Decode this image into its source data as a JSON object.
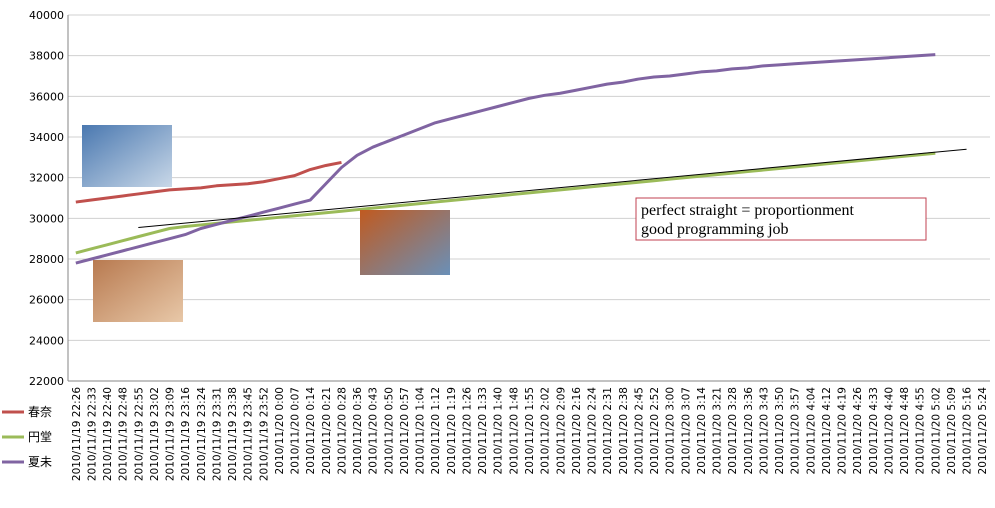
{
  "chart_data": {
    "type": "line",
    "categories": [
      "2010/11/19 22:26",
      "2010/11/19 22:33",
      "2010/11/19 22:40",
      "2010/11/19 22:48",
      "2010/11/19 22:55",
      "2010/11/19 23:02",
      "2010/11/19 23:09",
      "2010/11/19 23:16",
      "2010/11/19 23:24",
      "2010/11/19 23:31",
      "2010/11/19 23:38",
      "2010/11/19 23:45",
      "2010/11/19 23:52",
      "2010/11/20 0:00",
      "2010/11/20 0:07",
      "2010/11/20 0:14",
      "2010/11/20 0:21",
      "2010/11/20 0:28",
      "2010/11/20 0:36",
      "2010/11/20 0:43",
      "2010/11/20 0:50",
      "2010/11/20 0:57",
      "2010/11/20 1:04",
      "2010/11/20 1:12",
      "2010/11/20 1:19",
      "2010/11/20 1:26",
      "2010/11/20 1:33",
      "2010/11/20 1:40",
      "2010/11/20 1:48",
      "2010/11/20 1:55",
      "2010/11/20 2:02",
      "2010/11/20 2:09",
      "2010/11/20 2:16",
      "2010/11/20 2:24",
      "2010/11/20 2:31",
      "2010/11/20 2:38",
      "2010/11/20 2:45",
      "2010/11/20 2:52",
      "2010/11/20 3:00",
      "2010/11/20 3:07",
      "2010/11/20 3:14",
      "2010/11/20 3:21",
      "2010/11/20 3:28",
      "2010/11/20 3:36",
      "2010/11/20 3:43",
      "2010/11/20 3:50",
      "2010/11/20 3:57",
      "2010/11/20 4:04",
      "2010/11/20 4:12",
      "2010/11/20 4:19",
      "2010/11/20 4:26",
      "2010/11/20 4:33",
      "2010/11/20 4:40",
      "2010/11/20 4:48",
      "2010/11/20 4:55",
      "2010/11/20 5:02",
      "2010/11/20 5:09",
      "2010/11/20 5:16",
      "2010/11/20 5:24"
    ],
    "series": [
      {
        "name": "春奈",
        "color": "#c0504d",
        "values": [
          30800,
          30900,
          31000,
          31100,
          31200,
          31300,
          31400,
          31450,
          31500,
          31600,
          31650,
          31700,
          31800,
          31950,
          32100,
          32400,
          32600,
          32750,
          null,
          null,
          null,
          null,
          null,
          null,
          null,
          null,
          null,
          null,
          null,
          null,
          null,
          null,
          null,
          null,
          null,
          null,
          null,
          null,
          null,
          null,
          null,
          null,
          null,
          null,
          null,
          null,
          null,
          null,
          null,
          null,
          null,
          null,
          null,
          null,
          null,
          null,
          null,
          null,
          null
        ]
      },
      {
        "name": "円堂",
        "color": "#9bbb59",
        "values": [
          28300,
          28500,
          28700,
          28900,
          29100,
          29300,
          29500,
          29600,
          29675,
          29750,
          29825,
          29900,
          29975,
          30050,
          30125,
          30200,
          30275,
          30350,
          30425,
          30500,
          30575,
          30650,
          30725,
          30800,
          30875,
          30950,
          31025,
          31100,
          31175,
          31250,
          31325,
          31400,
          31475,
          31550,
          31625,
          31700,
          31775,
          31850,
          31925,
          32000,
          32075,
          32150,
          32225,
          32300,
          32375,
          32450,
          32525,
          32600,
          32675,
          32750,
          32825,
          32900,
          32975,
          33050,
          33125,
          33200,
          null,
          null,
          null
        ]
      },
      {
        "name": "夏未",
        "color": "#8064a2",
        "values": [
          27800,
          28000,
          28200,
          28400,
          28600,
          28800,
          29000,
          29200,
          29500,
          29700,
          29900,
          30100,
          30300,
          30500,
          30700,
          30900,
          31700,
          32500,
          33100,
          33500,
          33800,
          34100,
          34400,
          34700,
          34900,
          35100,
          35300,
          35500,
          35700,
          35900,
          36050,
          36150,
          36300,
          36450,
          36600,
          36700,
          36850,
          36950,
          37000,
          37100,
          37200,
          37250,
          37350,
          37400,
          37500,
          37550,
          37600,
          37650,
          37700,
          37750,
          37800,
          37850,
          37900,
          37950,
          38000,
          38050,
          null,
          null,
          null
        ]
      }
    ],
    "trend_line": {
      "x": [
        "2010/11/19 22:55",
        "2010/11/20 5:16"
      ],
      "values": [
        29550,
        33400
      ],
      "color": "#000000"
    },
    "annotation": [
      "perfect straight = proportionment",
      "good programming job"
    ],
    "ylim": [
      22000,
      40000
    ],
    "yticks": [
      22000,
      24000,
      26000,
      28000,
      30000,
      32000,
      34000,
      36000,
      38000,
      40000
    ],
    "grid": true
  }
}
